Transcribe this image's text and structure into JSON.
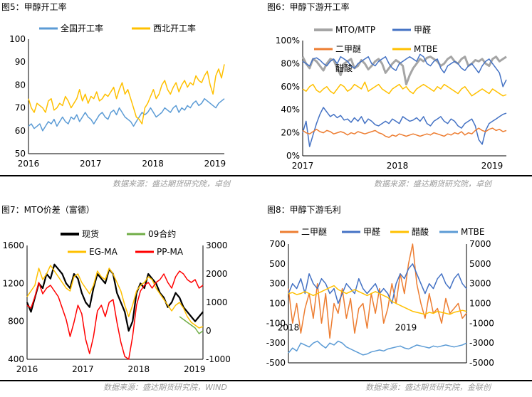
{
  "panels": {
    "p5": {
      "title": "图5：甲醇开工率",
      "source": "数据来源：盛达期货研究院，卓创"
    },
    "p6": {
      "title": "图6：甲醇下游开工率",
      "source": "数据来源：盛达期货研究院，卓创"
    },
    "p7": {
      "title": "图7：MTO价差（富德）",
      "source": "数据来源：盛达期货研究院，WIND"
    },
    "p8": {
      "title": "图8：甲醇下游毛利",
      "source": "数据来源：盛达期货研究院，金联创"
    }
  },
  "chart_data": [
    {
      "id": "p5",
      "type": "line",
      "x_ticks": [
        "2016",
        "2017",
        "2018",
        "2019"
      ],
      "y_ticks": [
        "50",
        "60",
        "70",
        "80",
        "90",
        "100"
      ],
      "ylim": [
        50,
        100
      ],
      "grid": false,
      "legend": "top",
      "series": [
        {
          "name": "全国开工率",
          "color": "#5b9bd5",
          "values": [
            62,
            63,
            61,
            62,
            63,
            60,
            62,
            64,
            63,
            65,
            62,
            64,
            66,
            64,
            63,
            66,
            65,
            67,
            64,
            66,
            68,
            66,
            65,
            63,
            65,
            67,
            68,
            66,
            65,
            68,
            69,
            67,
            70,
            68,
            66,
            65,
            64,
            62,
            64,
            66,
            68,
            67,
            68,
            70,
            68,
            66,
            67,
            68,
            70,
            69,
            68,
            70,
            71,
            68,
            70,
            69,
            71,
            70,
            72,
            73,
            71,
            72,
            74,
            73,
            72,
            71,
            70,
            72,
            73,
            74
          ]
        },
        {
          "name": "西北开工率",
          "color": "#ffc000",
          "values": [
            74,
            70,
            68,
            72,
            71,
            70,
            68,
            73,
            74,
            69,
            70,
            72,
            71,
            75,
            73,
            70,
            72,
            74,
            78,
            73,
            76,
            72,
            75,
            74,
            77,
            73,
            74,
            76,
            75,
            77,
            79,
            74,
            78,
            81,
            76,
            78,
            74,
            70,
            66,
            65,
            63,
            70,
            72,
            75,
            78,
            74,
            76,
            80,
            82,
            78,
            76,
            79,
            81,
            77,
            80,
            82,
            79,
            81,
            80,
            84,
            82,
            81,
            84,
            86,
            80,
            76,
            84,
            87,
            83,
            89
          ]
        }
      ]
    },
    {
      "id": "p6",
      "type": "line",
      "x_ticks": [
        "2017",
        "2018",
        "2019"
      ],
      "y_ticks": [
        "0%",
        "20%",
        "40%",
        "60%",
        "80%",
        "100%"
      ],
      "ylim": [
        0,
        100
      ],
      "grid": false,
      "legend": "top",
      "series": [
        {
          "name": "MTO/MTP",
          "color": "#a5a5a5",
          "values": [
            86,
            80,
            76,
            84,
            82,
            78,
            74,
            80,
            84,
            83,
            76,
            70,
            80,
            82,
            84,
            76,
            78,
            83,
            80,
            75,
            78,
            82,
            84,
            80,
            72,
            76,
            80,
            83,
            81,
            78,
            62,
            70,
            76,
            80,
            84,
            82,
            85,
            86,
            84,
            82,
            78,
            80,
            84,
            86,
            82,
            80,
            84,
            86,
            78,
            80,
            83,
            82,
            84,
            80,
            78,
            84,
            86,
            82,
            84,
            86
          ]
        },
        {
          "name": "甲醛",
          "color": "#4472c4",
          "values": [
            20,
            30,
            8,
            18,
            28,
            36,
            42,
            38,
            34,
            36,
            33,
            35,
            31,
            32,
            29,
            33,
            30,
            34,
            28,
            32,
            30,
            27,
            26,
            28,
            30,
            28,
            32,
            30,
            28,
            34,
            32,
            30,
            31,
            33,
            30,
            34,
            28,
            26,
            30,
            32,
            34,
            30,
            28,
            32,
            30,
            26,
            24,
            28,
            30,
            32,
            26,
            14,
            10,
            22,
            28,
            30,
            32,
            34,
            36,
            37
          ]
        },
        {
          "name": "二甲醚",
          "color": "#ed7d31",
          "values": [
            22,
            20,
            19,
            21,
            23,
            21,
            20,
            22,
            21,
            19,
            20,
            21,
            20,
            18,
            20,
            19,
            21,
            20,
            19,
            20,
            21,
            22,
            20,
            19,
            17,
            16,
            18,
            17,
            19,
            18,
            17,
            18,
            19,
            18,
            17,
            18,
            19,
            18,
            20,
            19,
            18,
            17,
            19,
            18,
            20,
            19,
            21,
            18,
            20,
            19,
            22,
            24,
            22,
            21,
            23,
            24,
            22,
            23,
            21,
            22
          ]
        },
        {
          "name": "醋酸",
          "color": "#4472c4",
          "values": [
            82,
            80,
            78,
            84,
            85,
            83,
            80,
            78,
            82,
            84,
            80,
            86,
            84,
            82,
            78,
            76,
            80,
            82,
            84,
            86,
            80,
            78,
            82,
            84,
            86,
            80,
            76,
            74,
            80,
            82,
            84,
            86,
            84,
            82,
            88,
            86,
            80,
            78,
            82,
            84,
            76,
            72,
            78,
            80,
            82,
            80,
            76,
            74,
            78,
            80,
            76,
            72,
            78,
            82,
            84,
            80,
            76,
            72,
            60,
            66
          ]
        },
        {
          "name": "MTBE",
          "color": "#ffc000",
          "values": [
            58,
            56,
            60,
            62,
            57,
            55,
            58,
            60,
            56,
            54,
            58,
            62,
            60,
            56,
            58,
            62,
            60,
            58,
            64,
            56,
            58,
            60,
            62,
            58,
            56,
            54,
            58,
            60,
            62,
            58,
            60,
            56,
            54,
            58,
            60,
            62,
            60,
            58,
            56,
            60,
            58,
            62,
            60,
            58,
            56,
            54,
            58,
            60,
            56,
            52,
            54,
            56,
            58,
            56,
            54,
            58,
            56,
            54,
            52,
            53
          ]
        }
      ]
    },
    {
      "id": "p7",
      "type": "line",
      "x_ticks": [
        "2016",
        "2017",
        "2018",
        "2019"
      ],
      "y_left_ticks": [
        "400",
        "800",
        "1200",
        "1600"
      ],
      "y_right_ticks": [
        "-1000",
        "0",
        "1000",
        "2000",
        "3000"
      ],
      "ylim_left": [
        400,
        1600
      ],
      "ylim_right": [
        -1000,
        3000
      ],
      "grid": false,
      "legend": "top",
      "series": [
        {
          "name": "现货",
          "color": "#000000",
          "axis": "left",
          "values": [
            1000,
            900,
            1050,
            1200,
            1150,
            1300,
            1250,
            1400,
            1350,
            1300,
            1200,
            1150,
            1300,
            1250,
            1100,
            1000,
            950,
            1150,
            1300,
            1250,
            1200,
            1350,
            1300,
            1100,
            1000,
            900,
            700,
            800,
            1100,
            1200,
            1150,
            1300,
            1250,
            1200,
            1100,
            1050,
            950,
            1000,
            1100,
            1050,
            950,
            900,
            850,
            800,
            850,
            900
          ]
        },
        {
          "name": "09合约",
          "color": "#70ad47",
          "axis": "right",
          "values": [
            null,
            null,
            null,
            null,
            null,
            null,
            null,
            null,
            null,
            null,
            null,
            null,
            null,
            null,
            null,
            null,
            null,
            null,
            null,
            null,
            null,
            null,
            null,
            null,
            null,
            null,
            null,
            null,
            null,
            null,
            null,
            null,
            null,
            null,
            null,
            null,
            null,
            null,
            null,
            500,
            400,
            300,
            200,
            100,
            -100,
            0
          ]
        },
        {
          "name": "EG-MA",
          "color": "#ffc000",
          "axis": "right",
          "values": [
            1200,
            1400,
            1600,
            2200,
            1800,
            2000,
            2300,
            2100,
            1900,
            1700,
            1500,
            1400,
            1900,
            2000,
            1700,
            1500,
            1300,
            1600,
            2100,
            1900,
            1800,
            2200,
            2000,
            1700,
            1400,
            900,
            500,
            900,
            1400,
            1600,
            1700,
            1900,
            1800,
            1500,
            1300,
            1100,
            900,
            700,
            900,
            1000,
            800,
            500,
            300,
            200,
            100,
            150
          ]
        },
        {
          "name": "PP-MA",
          "color": "#ff0000",
          "axis": "right",
          "values": [
            900,
            800,
            1200,
            1700,
            1300,
            1500,
            1600,
            1400,
            1200,
            800,
            400,
            -200,
            300,
            900,
            600,
            -300,
            -800,
            -200,
            700,
            900,
            500,
            1000,
            1100,
            300,
            -400,
            -900,
            -1000,
            -200,
            900,
            1400,
            1600,
            1700,
            1500,
            1700,
            1800,
            2000,
            1700,
            1500,
            1900,
            2100,
            2000,
            1800,
            1700,
            1800,
            1500,
            1600
          ]
        }
      ]
    },
    {
      "id": "p8",
      "type": "line",
      "x_ticks": [
        "2018",
        "2019"
      ],
      "y_left_ticks": [
        "-500",
        "-300",
        "-100",
        "100",
        "300",
        "500",
        "700"
      ],
      "y_right_ticks": [
        "-5000",
        "-3000",
        "-1000",
        "1000",
        "3000",
        "5000",
        "7000"
      ],
      "ylim_left": [
        -500,
        700
      ],
      "ylim_right": [
        -5000,
        7000
      ],
      "grid": false,
      "legend": "top",
      "series": [
        {
          "name": "二甲醚",
          "color": "#ed7d31",
          "axis": "left",
          "values": [
            250,
            -100,
            100,
            -200,
            50,
            200,
            -50,
            300,
            -100,
            200,
            -250,
            100,
            0,
            250,
            -50,
            150,
            -200,
            50,
            100,
            -150,
            200,
            0,
            250,
            -100,
            50,
            300,
            100,
            400,
            200,
            500,
            700,
            300,
            100,
            -50,
            200,
            0,
            50,
            -100,
            150,
            0,
            50,
            100,
            -50,
            0
          ]
        },
        {
          "name": "甲醛",
          "color": "#4472c4",
          "axis": "left",
          "values": [
            200,
            300,
            250,
            350,
            200,
            400,
            300,
            250,
            350,
            300,
            200,
            250,
            100,
            200,
            300,
            250,
            200,
            350,
            250,
            200,
            250,
            300,
            200,
            250,
            200,
            100,
            300,
            400,
            350,
            450,
            500,
            400,
            300,
            200,
            300,
            250,
            350,
            400,
            300,
            250,
            350,
            400,
            300,
            250
          ]
        },
        {
          "name": "醋酸",
          "color": "#ffc000",
          "axis": "right",
          "values": [
            2000,
            2100,
            1900,
            2000,
            2200,
            2000,
            1800,
            2000,
            2200,
            2400,
            2600,
            2800,
            2400,
            2200,
            2000,
            2200,
            2400,
            2200,
            2000,
            1800,
            2000,
            2200,
            2000,
            1800,
            1600,
            1200,
            1000,
            800,
            600,
            400,
            200,
            100,
            0,
            -100,
            100,
            0,
            200,
            100,
            0,
            -100,
            100,
            200,
            300,
            200
          ]
        },
        {
          "name": "MTBE",
          "color": "#5b9bd5",
          "axis": "left",
          "values": [
            -400,
            -350,
            -380,
            -300,
            -320,
            -340,
            -300,
            -280,
            -320,
            -350,
            -300,
            -320,
            -280,
            -300,
            -340,
            -360,
            -380,
            -400,
            -420,
            -410,
            -390,
            -380,
            -370,
            -380,
            -360,
            -350,
            -340,
            -330,
            -350,
            -360,
            -340,
            -320,
            -330,
            -340,
            -350,
            -330,
            -340,
            -330,
            -320,
            -330,
            -340,
            -330,
            -320,
            -300
          ]
        }
      ]
    }
  ]
}
